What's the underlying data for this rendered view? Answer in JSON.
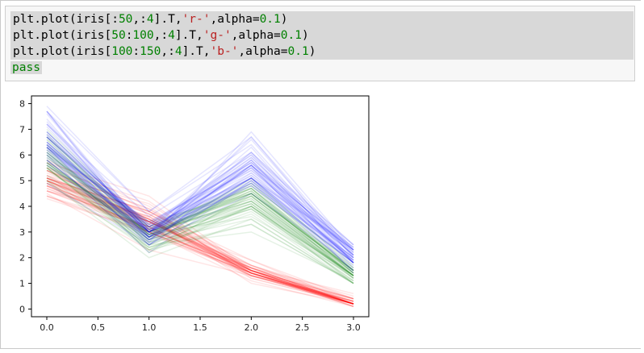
{
  "code_cell": {
    "lines": [
      {
        "tokens": [
          {
            "t": "plt.plot(iris[:",
            "c": "plain"
          },
          {
            "t": "50",
            "c": "num"
          },
          {
            "t": ",:",
            "c": "plain"
          },
          {
            "t": "4",
            "c": "num"
          },
          {
            "t": "].T,",
            "c": "plain"
          },
          {
            "t": "'r-'",
            "c": "str"
          },
          {
            "t": ",alpha=",
            "c": "plain"
          },
          {
            "t": "0.1",
            "c": "num"
          },
          {
            "t": ")",
            "c": "plain"
          }
        ]
      },
      {
        "tokens": [
          {
            "t": "plt.plot(iris[",
            "c": "plain"
          },
          {
            "t": "50",
            "c": "num"
          },
          {
            "t": ":",
            "c": "plain"
          },
          {
            "t": "100",
            "c": "num"
          },
          {
            "t": ",:",
            "c": "plain"
          },
          {
            "t": "4",
            "c": "num"
          },
          {
            "t": "].T,",
            "c": "plain"
          },
          {
            "t": "'g-'",
            "c": "str"
          },
          {
            "t": ",alpha=",
            "c": "plain"
          },
          {
            "t": "0.1",
            "c": "num"
          },
          {
            "t": ")",
            "c": "plain"
          }
        ]
      },
      {
        "tokens": [
          {
            "t": "plt.plot(iris[",
            "c": "plain"
          },
          {
            "t": "100",
            "c": "num"
          },
          {
            "t": ":",
            "c": "plain"
          },
          {
            "t": "150",
            "c": "num"
          },
          {
            "t": ",:",
            "c": "plain"
          },
          {
            "t": "4",
            "c": "num"
          },
          {
            "t": "].T,",
            "c": "plain"
          },
          {
            "t": "'b-'",
            "c": "str"
          },
          {
            "t": ",alpha=",
            "c": "plain"
          },
          {
            "t": "0.1",
            "c": "num"
          },
          {
            "t": ")",
            "c": "plain"
          }
        ]
      }
    ],
    "last_line": "pass"
  },
  "chart_data": {
    "type": "line",
    "x": [
      0,
      1,
      2,
      3
    ],
    "xlim": [
      -0.15,
      3.15
    ],
    "ylim": [
      -0.3,
      8.3
    ],
    "x_ticks": [
      "0.0",
      "0.5",
      "1.0",
      "1.5",
      "2.0",
      "2.5",
      "3.0"
    ],
    "x_tick_values": [
      0,
      0.5,
      1,
      1.5,
      2,
      2.5,
      3
    ],
    "y_ticks": [
      "0",
      "1",
      "2",
      "3",
      "4",
      "5",
      "6",
      "7",
      "8"
    ],
    "y_tick_values": [
      0,
      1,
      2,
      3,
      4,
      5,
      6,
      7,
      8
    ],
    "alpha": 0.1,
    "series": [
      {
        "color": "#ff0000",
        "lines": [
          [
            5.1,
            3.5,
            1.4,
            0.2
          ],
          [
            4.9,
            3.0,
            1.4,
            0.2
          ],
          [
            4.7,
            3.2,
            1.3,
            0.2
          ],
          [
            4.6,
            3.1,
            1.5,
            0.2
          ],
          [
            5.0,
            3.6,
            1.4,
            0.2
          ],
          [
            5.4,
            3.9,
            1.7,
            0.4
          ],
          [
            4.6,
            3.4,
            1.4,
            0.3
          ],
          [
            5.0,
            3.4,
            1.5,
            0.2
          ],
          [
            4.4,
            2.9,
            1.4,
            0.2
          ],
          [
            4.9,
            3.1,
            1.5,
            0.1
          ],
          [
            5.4,
            3.7,
            1.5,
            0.2
          ],
          [
            4.8,
            3.4,
            1.6,
            0.2
          ],
          [
            4.8,
            3.0,
            1.4,
            0.1
          ],
          [
            4.3,
            3.0,
            1.1,
            0.1
          ],
          [
            5.8,
            4.0,
            1.2,
            0.2
          ],
          [
            5.7,
            4.4,
            1.5,
            0.4
          ],
          [
            5.4,
            3.9,
            1.3,
            0.4
          ],
          [
            5.1,
            3.5,
            1.4,
            0.3
          ],
          [
            5.7,
            3.8,
            1.7,
            0.3
          ],
          [
            5.1,
            3.8,
            1.5,
            0.3
          ],
          [
            5.4,
            3.4,
            1.7,
            0.2
          ],
          [
            5.1,
            3.7,
            1.5,
            0.4
          ],
          [
            4.6,
            3.6,
            1.0,
            0.2
          ],
          [
            5.1,
            3.3,
            1.7,
            0.5
          ],
          [
            4.8,
            3.4,
            1.9,
            0.2
          ],
          [
            5.0,
            3.0,
            1.6,
            0.2
          ],
          [
            5.0,
            3.4,
            1.6,
            0.4
          ],
          [
            5.2,
            3.5,
            1.5,
            0.2
          ],
          [
            5.2,
            3.4,
            1.4,
            0.2
          ],
          [
            4.7,
            3.2,
            1.6,
            0.2
          ],
          [
            4.8,
            3.1,
            1.6,
            0.2
          ],
          [
            5.4,
            3.4,
            1.5,
            0.4
          ],
          [
            5.2,
            4.1,
            1.5,
            0.1
          ],
          [
            5.5,
            4.2,
            1.4,
            0.2
          ],
          [
            4.9,
            3.1,
            1.5,
            0.2
          ],
          [
            5.0,
            3.2,
            1.2,
            0.2
          ],
          [
            5.5,
            3.5,
            1.3,
            0.2
          ],
          [
            4.9,
            3.6,
            1.4,
            0.1
          ],
          [
            4.4,
            3.0,
            1.3,
            0.2
          ],
          [
            5.1,
            3.4,
            1.5,
            0.2
          ],
          [
            5.0,
            3.5,
            1.3,
            0.3
          ],
          [
            4.5,
            2.3,
            1.3,
            0.3
          ],
          [
            4.4,
            3.2,
            1.3,
            0.2
          ],
          [
            5.0,
            3.5,
            1.6,
            0.6
          ],
          [
            5.1,
            3.8,
            1.9,
            0.4
          ],
          [
            4.8,
            3.0,
            1.4,
            0.3
          ],
          [
            5.1,
            3.8,
            1.6,
            0.2
          ],
          [
            4.6,
            3.2,
            1.4,
            0.2
          ],
          [
            5.3,
            3.7,
            1.5,
            0.2
          ],
          [
            5.0,
            3.3,
            1.4,
            0.2
          ]
        ]
      },
      {
        "color": "#008000",
        "lines": [
          [
            7.0,
            3.2,
            4.7,
            1.4
          ],
          [
            6.4,
            3.2,
            4.5,
            1.5
          ],
          [
            6.9,
            3.1,
            4.9,
            1.5
          ],
          [
            5.5,
            2.3,
            4.0,
            1.3
          ],
          [
            6.5,
            2.8,
            4.6,
            1.5
          ],
          [
            5.7,
            2.8,
            4.5,
            1.3
          ],
          [
            6.3,
            3.3,
            4.7,
            1.6
          ],
          [
            4.9,
            2.4,
            3.3,
            1.0
          ],
          [
            6.6,
            2.9,
            4.6,
            1.3
          ],
          [
            5.2,
            2.7,
            3.9,
            1.4
          ],
          [
            5.0,
            2.0,
            3.5,
            1.0
          ],
          [
            5.9,
            3.0,
            4.2,
            1.5
          ],
          [
            6.0,
            2.2,
            4.0,
            1.0
          ],
          [
            6.1,
            2.9,
            4.7,
            1.4
          ],
          [
            5.6,
            2.9,
            3.6,
            1.3
          ],
          [
            6.7,
            3.1,
            4.4,
            1.4
          ],
          [
            5.6,
            3.0,
            4.5,
            1.5
          ],
          [
            5.8,
            2.7,
            4.1,
            1.0
          ],
          [
            6.2,
            2.2,
            4.5,
            1.5
          ],
          [
            5.6,
            2.5,
            3.9,
            1.1
          ],
          [
            5.9,
            3.2,
            4.8,
            1.8
          ],
          [
            6.1,
            2.8,
            4.0,
            1.3
          ],
          [
            6.3,
            2.5,
            4.9,
            1.5
          ],
          [
            6.1,
            2.8,
            4.7,
            1.2
          ],
          [
            6.4,
            2.9,
            4.3,
            1.3
          ],
          [
            6.6,
            3.0,
            4.4,
            1.4
          ],
          [
            6.8,
            2.8,
            4.8,
            1.4
          ],
          [
            6.7,
            3.0,
            5.0,
            1.7
          ],
          [
            6.0,
            2.9,
            4.5,
            1.5
          ],
          [
            5.7,
            2.6,
            3.5,
            1.0
          ],
          [
            5.5,
            2.4,
            3.8,
            1.1
          ],
          [
            5.5,
            2.4,
            3.7,
            1.0
          ],
          [
            5.8,
            2.7,
            3.9,
            1.2
          ],
          [
            6.0,
            2.7,
            5.1,
            1.6
          ],
          [
            5.4,
            3.0,
            4.5,
            1.5
          ],
          [
            6.0,
            3.4,
            4.5,
            1.6
          ],
          [
            6.7,
            3.1,
            4.7,
            1.5
          ],
          [
            6.3,
            2.3,
            4.4,
            1.3
          ],
          [
            5.6,
            3.0,
            4.1,
            1.3
          ],
          [
            5.5,
            2.5,
            4.0,
            1.3
          ],
          [
            5.5,
            2.6,
            4.4,
            1.2
          ],
          [
            6.1,
            3.0,
            4.6,
            1.4
          ],
          [
            5.8,
            2.6,
            4.0,
            1.2
          ],
          [
            5.0,
            2.3,
            3.3,
            1.0
          ],
          [
            5.6,
            2.7,
            4.2,
            1.3
          ],
          [
            5.7,
            3.0,
            4.2,
            1.2
          ],
          [
            5.7,
            2.9,
            4.2,
            1.3
          ],
          [
            6.2,
            2.9,
            4.3,
            1.3
          ],
          [
            5.1,
            2.5,
            3.0,
            1.1
          ],
          [
            5.7,
            2.8,
            4.1,
            1.3
          ]
        ]
      },
      {
        "color": "#0000ff",
        "lines": [
          [
            6.3,
            3.3,
            6.0,
            2.5
          ],
          [
            5.8,
            2.7,
            5.1,
            1.9
          ],
          [
            7.1,
            3.0,
            5.9,
            2.1
          ],
          [
            6.3,
            2.9,
            5.6,
            1.8
          ],
          [
            6.5,
            3.0,
            5.8,
            2.2
          ],
          [
            7.6,
            3.0,
            6.6,
            2.1
          ],
          [
            4.9,
            2.5,
            4.5,
            1.7
          ],
          [
            7.3,
            2.9,
            6.3,
            1.8
          ],
          [
            6.7,
            2.5,
            5.8,
            1.8
          ],
          [
            7.2,
            3.6,
            6.1,
            2.5
          ],
          [
            6.5,
            3.2,
            5.1,
            2.0
          ],
          [
            6.4,
            2.7,
            5.3,
            1.9
          ],
          [
            6.8,
            3.0,
            5.5,
            2.1
          ],
          [
            5.7,
            2.5,
            5.0,
            2.0
          ],
          [
            5.8,
            2.8,
            5.1,
            2.4
          ],
          [
            6.4,
            3.2,
            5.3,
            2.3
          ],
          [
            6.5,
            3.0,
            5.5,
            1.8
          ],
          [
            7.7,
            3.8,
            6.7,
            2.2
          ],
          [
            7.7,
            2.6,
            6.9,
            2.3
          ],
          [
            6.0,
            2.2,
            5.0,
            1.5
          ],
          [
            6.9,
            3.2,
            5.7,
            2.3
          ],
          [
            5.6,
            2.8,
            4.9,
            2.0
          ],
          [
            7.7,
            2.8,
            6.7,
            2.0
          ],
          [
            6.3,
            2.7,
            4.9,
            1.8
          ],
          [
            6.7,
            3.3,
            5.7,
            2.1
          ],
          [
            7.2,
            3.2,
            6.0,
            1.8
          ],
          [
            6.2,
            2.8,
            4.8,
            1.8
          ],
          [
            6.1,
            3.0,
            4.9,
            1.8
          ],
          [
            6.4,
            2.8,
            5.6,
            2.1
          ],
          [
            7.2,
            3.0,
            5.8,
            1.6
          ],
          [
            7.4,
            2.8,
            6.1,
            1.9
          ],
          [
            7.9,
            3.8,
            6.4,
            2.0
          ],
          [
            6.4,
            2.8,
            5.6,
            2.2
          ],
          [
            6.3,
            2.8,
            5.1,
            1.5
          ],
          [
            6.1,
            2.6,
            5.6,
            1.4
          ],
          [
            7.7,
            3.0,
            6.1,
            2.3
          ],
          [
            6.3,
            3.4,
            5.6,
            2.4
          ],
          [
            6.4,
            3.1,
            5.5,
            1.8
          ],
          [
            6.0,
            3.0,
            4.8,
            1.8
          ],
          [
            6.9,
            3.1,
            5.4,
            2.1
          ],
          [
            6.7,
            3.1,
            5.6,
            2.4
          ],
          [
            6.9,
            3.1,
            5.1,
            2.3
          ],
          [
            5.8,
            2.7,
            5.1,
            1.9
          ],
          [
            6.8,
            3.2,
            5.9,
            2.3
          ],
          [
            6.7,
            3.3,
            5.7,
            2.5
          ],
          [
            6.7,
            3.0,
            5.2,
            2.3
          ],
          [
            6.3,
            2.5,
            5.0,
            1.9
          ],
          [
            6.5,
            3.0,
            5.2,
            2.0
          ],
          [
            6.2,
            3.4,
            5.4,
            2.3
          ],
          [
            5.9,
            3.0,
            5.1,
            1.8
          ]
        ]
      }
    ]
  }
}
